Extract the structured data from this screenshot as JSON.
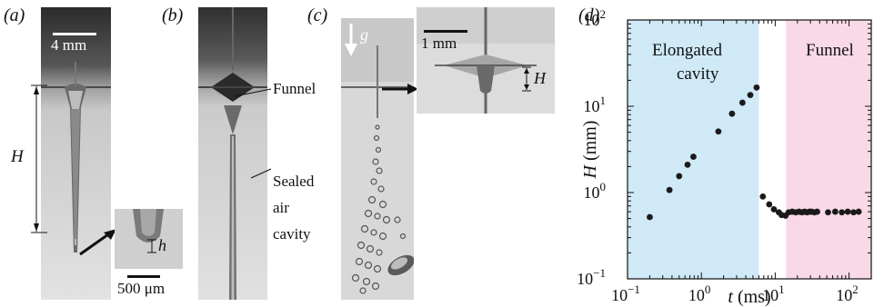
{
  "panels": {
    "a": {
      "label": "(a)",
      "scale_bar": "4 mm",
      "height_label": "H",
      "inset_scale": "500 μm",
      "inset_h_label": "h"
    },
    "b": {
      "label": "(b)",
      "funnel": "Funnel",
      "sealed_line1": "Sealed",
      "sealed_line2": "air",
      "sealed_line3": "cavity"
    },
    "c": {
      "label": "(c)",
      "gravity": "g",
      "inset_scale": "1 mm",
      "inset_h_label": "H"
    },
    "d": {
      "label": "(d)",
      "region_left_line1": "Elongated",
      "region_left_line2": "cavity",
      "region_right": "Funnel",
      "colors": {
        "left_region": "#cfe9f7",
        "right_region": "#f9d9e8",
        "points": "#1a1a1a"
      }
    }
  },
  "chart_data": {
    "type": "scatter",
    "xscale": "log",
    "yscale": "log",
    "xlim": [
      0.1,
      200
    ],
    "ylim": [
      0.1,
      100
    ],
    "xlabel": "t (ms)",
    "ylabel": "H (mm)",
    "xticks": [
      "10^-1",
      "10^0",
      "10^1",
      "10^2"
    ],
    "yticks": [
      "10^-1",
      "10^0",
      "10^1",
      "10^2"
    ],
    "shaded_regions": [
      {
        "label": "Elongated cavity",
        "x_range": [
          0.1,
          6
        ]
      },
      {
        "label": "Funnel",
        "x_range": [
          14,
          200
        ]
      }
    ],
    "series": [
      {
        "points": [
          [
            0.2,
            0.52
          ],
          [
            0.37,
            1.07
          ],
          [
            0.5,
            1.55
          ],
          [
            0.65,
            2.1
          ],
          [
            0.78,
            2.6
          ],
          [
            1.7,
            5.1
          ],
          [
            2.6,
            8.2
          ],
          [
            3.6,
            11.0
          ],
          [
            4.6,
            13.5
          ],
          [
            5.6,
            16.5
          ],
          [
            6.8,
            0.9
          ],
          [
            8.3,
            0.73
          ],
          [
            9.6,
            0.64
          ],
          [
            11.2,
            0.59
          ],
          [
            12.2,
            0.55
          ],
          [
            13.8,
            0.54
          ],
          [
            15.2,
            0.59
          ],
          [
            17.0,
            0.6
          ],
          [
            19.0,
            0.59
          ],
          [
            21.0,
            0.6
          ],
          [
            23.0,
            0.59
          ],
          [
            25.0,
            0.6
          ],
          [
            27.0,
            0.59
          ],
          [
            29.0,
            0.6
          ],
          [
            31.0,
            0.6
          ],
          [
            34.0,
            0.59
          ],
          [
            37.0,
            0.6
          ],
          [
            52.0,
            0.59
          ],
          [
            65.0,
            0.6
          ],
          [
            80.0,
            0.59
          ],
          [
            96.0,
            0.6
          ],
          [
            115.0,
            0.59
          ],
          [
            135.0,
            0.6
          ]
        ]
      }
    ]
  }
}
